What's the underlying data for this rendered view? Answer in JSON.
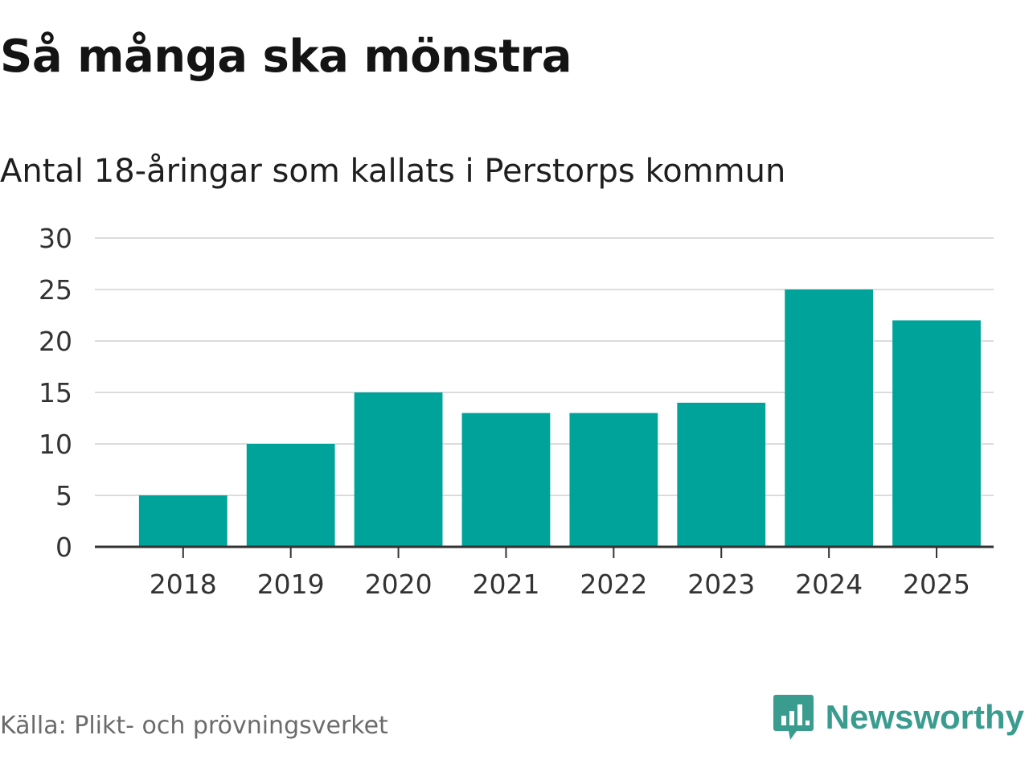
{
  "header": {
    "title": "Så många ska mönstra",
    "subtitle": "Antal 18-åringar som kallats i Perstorps kommun"
  },
  "chart_data": {
    "type": "bar",
    "categories": [
      "2018",
      "2019",
      "2020",
      "2021",
      "2022",
      "2023",
      "2024",
      "2025"
    ],
    "values": [
      5,
      10,
      15,
      13,
      13,
      14,
      25,
      22
    ],
    "ylim": [
      0,
      30
    ],
    "yticks": [
      "0",
      "5",
      "10",
      "15",
      "20",
      "25",
      "30"
    ],
    "grid": true,
    "bar_color": "#00a39a"
  },
  "footer": {
    "source": "Källa: Plikt- och prövningsverket",
    "brand": "Newsworthy",
    "brand_icon": "newsworthy-logo-icon",
    "brand_color": "#3a9c8f"
  }
}
